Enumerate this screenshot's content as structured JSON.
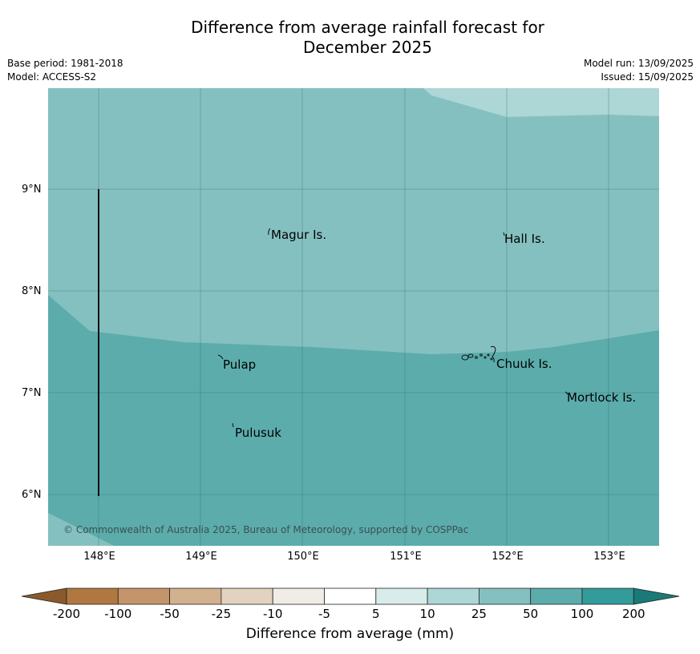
{
  "title_line1": "Difference from average rainfall forecast for",
  "title_line2": "December 2025",
  "base_period": "Base period: 1981-2018",
  "model": "Model: ACCESS-S2",
  "model_run": "Model run: 13/09/2025",
  "issued": "Issued: 15/09/2025",
  "lat_labels": [
    "9°N",
    "8°N",
    "7°N",
    "6°N"
  ],
  "lon_labels": [
    "148°E",
    "149°E",
    "150°E",
    "151°E",
    "152°E",
    "153°E"
  ],
  "places": {
    "magur": "Magur Is.",
    "hall": "Hall Is.",
    "pulap": "Pulap",
    "chuuk": "Chuuk Is.",
    "mortlock": "Mortlock Is.",
    "pulusuk": "Pulusuk"
  },
  "copyright": "© Commonwealth of Australia 2025, Bureau of Meteorology, supported by COSPPac",
  "colorbar": {
    "labels": [
      "-200",
      "-100",
      "-50",
      "-25",
      "-10",
      "-5",
      "5",
      "10",
      "25",
      "50",
      "100",
      "200"
    ],
    "colors": [
      "#8b5a2b",
      "#b07840",
      "#c4956a",
      "#d2b18f",
      "#e4d2c0",
      "#f0ece6",
      "#ffffff",
      "#d8ecea",
      "#add6d6",
      "#85c0c0",
      "#5cacac",
      "#339b99",
      "#1a7a77"
    ],
    "title": "Difference from average (mm)"
  },
  "field_colors": {
    "light": "#add6d6",
    "mid": "#85c0c0",
    "dark": "#5cacac"
  }
}
